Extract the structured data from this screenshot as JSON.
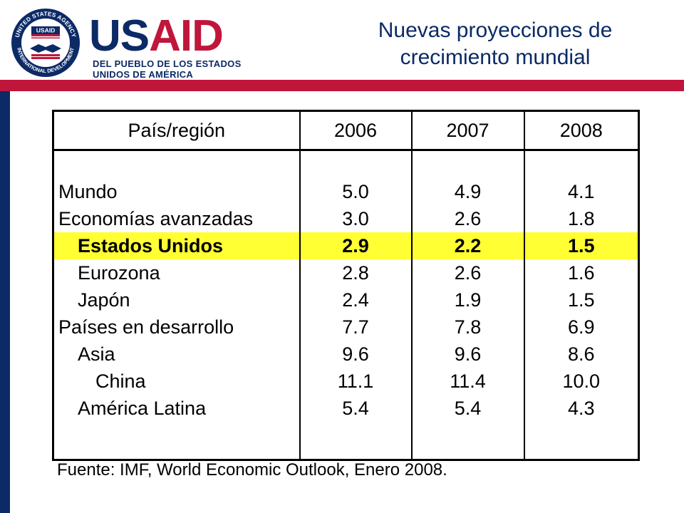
{
  "logo": {
    "seal_top_text": "UNITED STATES AGENCY",
    "seal_bottom_text": "INTERNATIONAL DEVELOPMENT",
    "seal_center_text": "USAID",
    "wordmark_part1": "US",
    "wordmark_part2": "AID",
    "tagline_line1": "DEL PUEBLO DE LOS ESTADOS",
    "tagline_line2": "UNIDOS DE AMÉRICA"
  },
  "title": {
    "line1": "Nuevas proyecciones de",
    "line2": "crecimiento mundial"
  },
  "table": {
    "headers": [
      "País/región",
      "2006",
      "2007",
      "2008"
    ],
    "rows": [
      {
        "label": "Mundo",
        "values": [
          "5.0",
          "4.9",
          "4.1"
        ]
      },
      {
        "label": "Economías avanzadas",
        "values": [
          "3.0",
          "2.6",
          "1.8"
        ]
      },
      {
        "label": "Estados Unidos",
        "values": [
          "2.9",
          "2.2",
          "1.5"
        ]
      },
      {
        "label": "Eurozona",
        "values": [
          "2.8",
          "2.6",
          "1.6"
        ]
      },
      {
        "label": "Japón",
        "values": [
          "2.4",
          "1.9",
          "1.5"
        ]
      },
      {
        "label": "Países en desarrollo",
        "values": [
          "7.7",
          "7.8",
          "6.9"
        ]
      },
      {
        "label": "Asia",
        "values": [
          "9.6",
          "9.6",
          "8.6"
        ]
      },
      {
        "label": "China",
        "values": [
          "11.1",
          "11.4",
          "10.0"
        ]
      },
      {
        "label": "América Latina",
        "values": [
          "5.4",
          "5.4",
          "4.3"
        ]
      }
    ]
  },
  "source": "Fuente: IMF, World Economic Outlook, Enero 2008.",
  "colors": {
    "navy": "#0b2a66",
    "red": "#c0163b",
    "highlight": "#ffff33"
  }
}
